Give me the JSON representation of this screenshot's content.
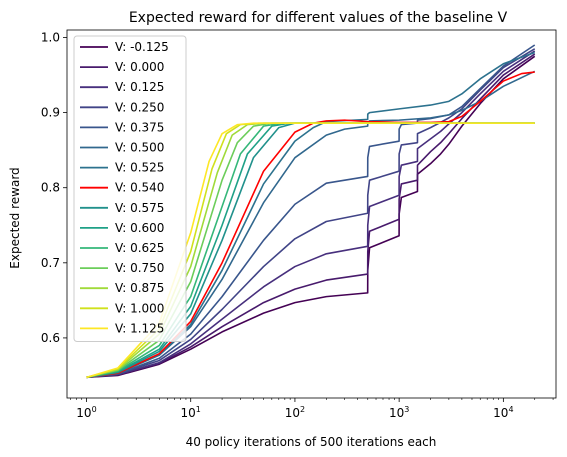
{
  "chart_data": {
    "type": "line",
    "title": "Expected reward for different values of the baseline V",
    "xlabel": "40 policy iterations of 500 iterations each",
    "ylabel": "Expected reward",
    "xscale": "log",
    "xlim": [
      0.65,
      32000
    ],
    "ylim": [
      0.52,
      1.01
    ],
    "x_ticks": [
      1,
      10,
      100,
      1000,
      10000
    ],
    "x_tick_labels": [
      {
        "base": "10",
        "exp": "0"
      },
      {
        "base": "10",
        "exp": "1"
      },
      {
        "base": "10",
        "exp": "2"
      },
      {
        "base": "10",
        "exp": "3"
      },
      {
        "base": "10",
        "exp": "4"
      }
    ],
    "y_ticks": [
      0.6,
      0.7,
      0.8,
      0.9,
      1.0
    ],
    "y_tick_labels": [
      "0.6",
      "0.7",
      "0.8",
      "0.9",
      "1.0"
    ],
    "grid": false,
    "legend_position": "top-left",
    "series": [
      {
        "name": "V: -0.125",
        "color": "#440154",
        "points": [
          [
            1,
            0.5475
          ],
          [
            2,
            0.55
          ],
          [
            5,
            0.565
          ],
          [
            10,
            0.585
          ],
          [
            20,
            0.608
          ],
          [
            50,
            0.633
          ],
          [
            100,
            0.647
          ],
          [
            200,
            0.655
          ],
          [
            499,
            0.66
          ],
          [
            500,
            0.69
          ],
          [
            520,
            0.72
          ],
          [
            999,
            0.736
          ],
          [
            1000,
            0.765
          ],
          [
            1050,
            0.787
          ],
          [
            1499,
            0.795
          ],
          [
            1500,
            0.818
          ],
          [
            2000,
            0.832
          ],
          [
            2500,
            0.845
          ],
          [
            3000,
            0.858
          ],
          [
            4000,
            0.882
          ],
          [
            6000,
            0.912
          ],
          [
            10000,
            0.945
          ],
          [
            20000,
            0.975
          ]
        ]
      },
      {
        "name": "V: 0.000",
        "color": "#481a6c",
        "points": [
          [
            1,
            0.5475
          ],
          [
            2,
            0.551
          ],
          [
            5,
            0.566
          ],
          [
            10,
            0.588
          ],
          [
            20,
            0.615
          ],
          [
            50,
            0.647
          ],
          [
            100,
            0.665
          ],
          [
            200,
            0.677
          ],
          [
            499,
            0.685
          ],
          [
            500,
            0.715
          ],
          [
            520,
            0.742
          ],
          [
            999,
            0.758
          ],
          [
            1000,
            0.785
          ],
          [
            1050,
            0.805
          ],
          [
            1499,
            0.81
          ],
          [
            1500,
            0.83
          ],
          [
            2000,
            0.848
          ],
          [
            2500,
            0.86
          ],
          [
            3000,
            0.872
          ],
          [
            4000,
            0.892
          ],
          [
            6000,
            0.918
          ],
          [
            10000,
            0.95
          ],
          [
            20000,
            0.978
          ]
        ]
      },
      {
        "name": "V: 0.125",
        "color": "#472f7d",
        "points": [
          [
            1,
            0.5475
          ],
          [
            2,
            0.551
          ],
          [
            5,
            0.567
          ],
          [
            10,
            0.592
          ],
          [
            20,
            0.625
          ],
          [
            50,
            0.668
          ],
          [
            100,
            0.695
          ],
          [
            200,
            0.712
          ],
          [
            499,
            0.722
          ],
          [
            500,
            0.75
          ],
          [
            520,
            0.775
          ],
          [
            999,
            0.79
          ],
          [
            1000,
            0.815
          ],
          [
            1050,
            0.83
          ],
          [
            1499,
            0.835
          ],
          [
            1500,
            0.852
          ],
          [
            2000,
            0.865
          ],
          [
            2500,
            0.875
          ],
          [
            3000,
            0.885
          ],
          [
            4000,
            0.9
          ],
          [
            6000,
            0.925
          ],
          [
            10000,
            0.955
          ],
          [
            20000,
            0.982
          ]
        ]
      },
      {
        "name": "V: 0.250",
        "color": "#414487",
        "points": [
          [
            1,
            0.5475
          ],
          [
            2,
            0.552
          ],
          [
            5,
            0.57
          ],
          [
            10,
            0.598
          ],
          [
            20,
            0.638
          ],
          [
            50,
            0.695
          ],
          [
            100,
            0.732
          ],
          [
            200,
            0.755
          ],
          [
            499,
            0.766
          ],
          [
            500,
            0.79
          ],
          [
            520,
            0.81
          ],
          [
            999,
            0.822
          ],
          [
            1000,
            0.845
          ],
          [
            1050,
            0.857
          ],
          [
            1499,
            0.86
          ],
          [
            1500,
            0.872
          ],
          [
            2000,
            0.88
          ],
          [
            2500,
            0.887
          ],
          [
            3000,
            0.893
          ],
          [
            4000,
            0.905
          ],
          [
            6000,
            0.93
          ],
          [
            10000,
            0.96
          ],
          [
            20000,
            0.985
          ]
        ]
      },
      {
        "name": "V: 0.375",
        "color": "#39568c",
        "points": [
          [
            1,
            0.5475
          ],
          [
            2,
            0.552
          ],
          [
            5,
            0.573
          ],
          [
            10,
            0.605
          ],
          [
            20,
            0.655
          ],
          [
            50,
            0.73
          ],
          [
            100,
            0.778
          ],
          [
            200,
            0.806
          ],
          [
            499,
            0.815
          ],
          [
            500,
            0.84
          ],
          [
            520,
            0.855
          ],
          [
            999,
            0.862
          ],
          [
            1000,
            0.878
          ],
          [
            1050,
            0.884
          ],
          [
            1499,
            0.886
          ],
          [
            1500,
            0.89
          ],
          [
            2000,
            0.892
          ],
          [
            3000,
            0.897
          ],
          [
            4000,
            0.908
          ],
          [
            6000,
            0.932
          ],
          [
            10000,
            0.962
          ],
          [
            20000,
            0.99
          ]
        ]
      },
      {
        "name": "V: 0.500",
        "color": "#31688e",
        "points": [
          [
            1,
            0.5475
          ],
          [
            2,
            0.553
          ],
          [
            5,
            0.577
          ],
          [
            10,
            0.615
          ],
          [
            20,
            0.678
          ],
          [
            50,
            0.78
          ],
          [
            100,
            0.84
          ],
          [
            200,
            0.87
          ],
          [
            300,
            0.878
          ],
          [
            499,
            0.882
          ],
          [
            500,
            0.887
          ],
          [
            520,
            0.889
          ],
          [
            1000,
            0.89
          ],
          [
            2000,
            0.893
          ],
          [
            3000,
            0.897
          ],
          [
            4000,
            0.903
          ],
          [
            6000,
            0.915
          ],
          [
            10000,
            0.935
          ],
          [
            20000,
            0.955
          ]
        ]
      },
      {
        "name": "V: 0.525",
        "color": "#2c728e",
        "points": [
          [
            1,
            0.5475
          ],
          [
            2,
            0.553
          ],
          [
            5,
            0.578
          ],
          [
            10,
            0.618
          ],
          [
            20,
            0.69
          ],
          [
            50,
            0.805
          ],
          [
            100,
            0.862
          ],
          [
            150,
            0.88
          ],
          [
            200,
            0.888
          ],
          [
            499,
            0.891
          ],
          [
            500,
            0.898
          ],
          [
            520,
            0.9
          ],
          [
            1000,
            0.905
          ],
          [
            2000,
            0.91
          ],
          [
            3000,
            0.915
          ],
          [
            4000,
            0.925
          ],
          [
            6000,
            0.945
          ],
          [
            10000,
            0.965
          ],
          [
            20000,
            0.98
          ]
        ]
      },
      {
        "name": "V: 0.540",
        "color": "#ff0000",
        "points": [
          [
            1,
            0.5475
          ],
          [
            2,
            0.553
          ],
          [
            5,
            0.579
          ],
          [
            10,
            0.622
          ],
          [
            20,
            0.7
          ],
          [
            50,
            0.822
          ],
          [
            100,
            0.874
          ],
          [
            150,
            0.886
          ],
          [
            200,
            0.889
          ],
          [
            300,
            0.89
          ],
          [
            500,
            0.888
          ],
          [
            1000,
            0.887
          ],
          [
            2000,
            0.887
          ],
          [
            3000,
            0.888
          ],
          [
            4000,
            0.895
          ],
          [
            6000,
            0.915
          ],
          [
            10000,
            0.942
          ],
          [
            15000,
            0.952
          ],
          [
            20000,
            0.954
          ]
        ]
      },
      {
        "name": "V: 0.575",
        "color": "#21918c",
        "points": [
          [
            1,
            0.5475
          ],
          [
            2,
            0.554
          ],
          [
            5,
            0.582
          ],
          [
            10,
            0.632
          ],
          [
            20,
            0.73
          ],
          [
            40,
            0.84
          ],
          [
            70,
            0.88
          ],
          [
            100,
            0.886
          ],
          [
            500,
            0.886
          ],
          [
            20000,
            0.886
          ]
        ]
      },
      {
        "name": "V: 0.600",
        "color": "#1fa187",
        "points": [
          [
            1,
            0.5475
          ],
          [
            2,
            0.555
          ],
          [
            5,
            0.585
          ],
          [
            10,
            0.642
          ],
          [
            20,
            0.75
          ],
          [
            35,
            0.845
          ],
          [
            60,
            0.882
          ],
          [
            90,
            0.886
          ],
          [
            500,
            0.886
          ],
          [
            20000,
            0.886
          ]
        ]
      },
      {
        "name": "V: 0.625",
        "color": "#35b779",
        "points": [
          [
            1,
            0.5475
          ],
          [
            2,
            0.556
          ],
          [
            5,
            0.59
          ],
          [
            10,
            0.655
          ],
          [
            20,
            0.775
          ],
          [
            30,
            0.845
          ],
          [
            50,
            0.882
          ],
          [
            75,
            0.886
          ],
          [
            500,
            0.886
          ],
          [
            20000,
            0.886
          ]
        ]
      },
      {
        "name": "V: 0.750",
        "color": "#6ccd5a",
        "points": [
          [
            1,
            0.5475
          ],
          [
            2,
            0.557
          ],
          [
            5,
            0.597
          ],
          [
            10,
            0.675
          ],
          [
            20,
            0.81
          ],
          [
            28,
            0.86
          ],
          [
            40,
            0.882
          ],
          [
            60,
            0.886
          ],
          [
            500,
            0.886
          ],
          [
            20000,
            0.886
          ]
        ]
      },
      {
        "name": "V: 0.875",
        "color": "#a0da39",
        "points": [
          [
            1,
            0.5475
          ],
          [
            2,
            0.558
          ],
          [
            5,
            0.605
          ],
          [
            10,
            0.695
          ],
          [
            18,
            0.82
          ],
          [
            25,
            0.87
          ],
          [
            35,
            0.884
          ],
          [
            50,
            0.886
          ],
          [
            500,
            0.886
          ],
          [
            20000,
            0.886
          ]
        ]
      },
      {
        "name": "V: 1.000",
        "color": "#d0e11c",
        "points": [
          [
            1,
            0.5475
          ],
          [
            2,
            0.559
          ],
          [
            5,
            0.612
          ],
          [
            10,
            0.715
          ],
          [
            16,
            0.825
          ],
          [
            22,
            0.872
          ],
          [
            30,
            0.884
          ],
          [
            45,
            0.886
          ],
          [
            500,
            0.886
          ],
          [
            20000,
            0.886
          ]
        ]
      },
      {
        "name": "V: 1.125",
        "color": "#fde725",
        "points": [
          [
            1,
            0.5475
          ],
          [
            2,
            0.56
          ],
          [
            5,
            0.62
          ],
          [
            10,
            0.74
          ],
          [
            15,
            0.835
          ],
          [
            20,
            0.872
          ],
          [
            28,
            0.884
          ],
          [
            40,
            0.886
          ],
          [
            500,
            0.886
          ],
          [
            20000,
            0.886
          ]
        ]
      }
    ]
  }
}
